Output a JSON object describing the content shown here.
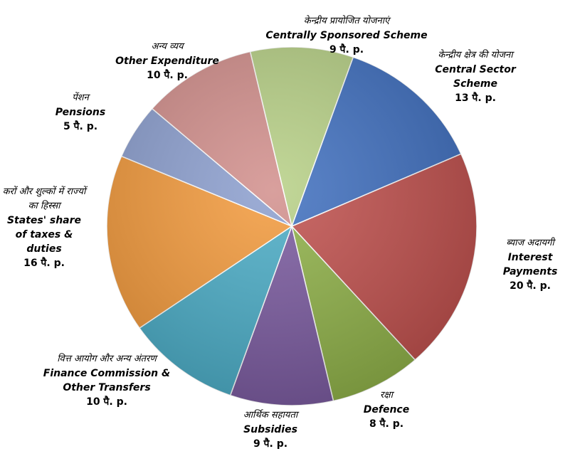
{
  "chart_data": {
    "type": "pie",
    "categories": [
      "Centrally Sponsored Scheme",
      "Central Sector Scheme",
      "Interest Payments",
      "Defence",
      "Subsidies",
      "Finance Commission & Other Transfers",
      "States' share of taxes & duties",
      "Pensions",
      "Other Expenditure"
    ],
    "categories_hi": [
      "केन्द्रीय प्रायोजित योजनाएं",
      "केन्द्रीय क्षेत्र की योजना",
      "ब्याज अदायगी",
      "रक्षा",
      "आर्थिक सहायता",
      "वित्त आयोग और अन्य अंतरण",
      "करों और शुल्कों में राज्यों का हिस्सा",
      "पेंशन",
      "अन्य व्यय"
    ],
    "values": [
      9,
      13,
      20,
      8,
      9,
      10,
      16,
      5,
      10
    ],
    "value_labels": [
      "9 पै. p.",
      "13 पै. p.",
      "20 पै. p.",
      "8 पै. p.",
      "9 पै. p.",
      "10 पै. p.",
      "16 पै. p.",
      "5 पै. p.",
      "10 पै. p."
    ],
    "colors": [
      "#b7d086",
      "#3f6fbf",
      "#c0504d",
      "#8fb148",
      "#7a5a9f",
      "#4aacc6",
      "#f39a3c",
      "#8c9fcf",
      "#d28f8c"
    ]
  }
}
